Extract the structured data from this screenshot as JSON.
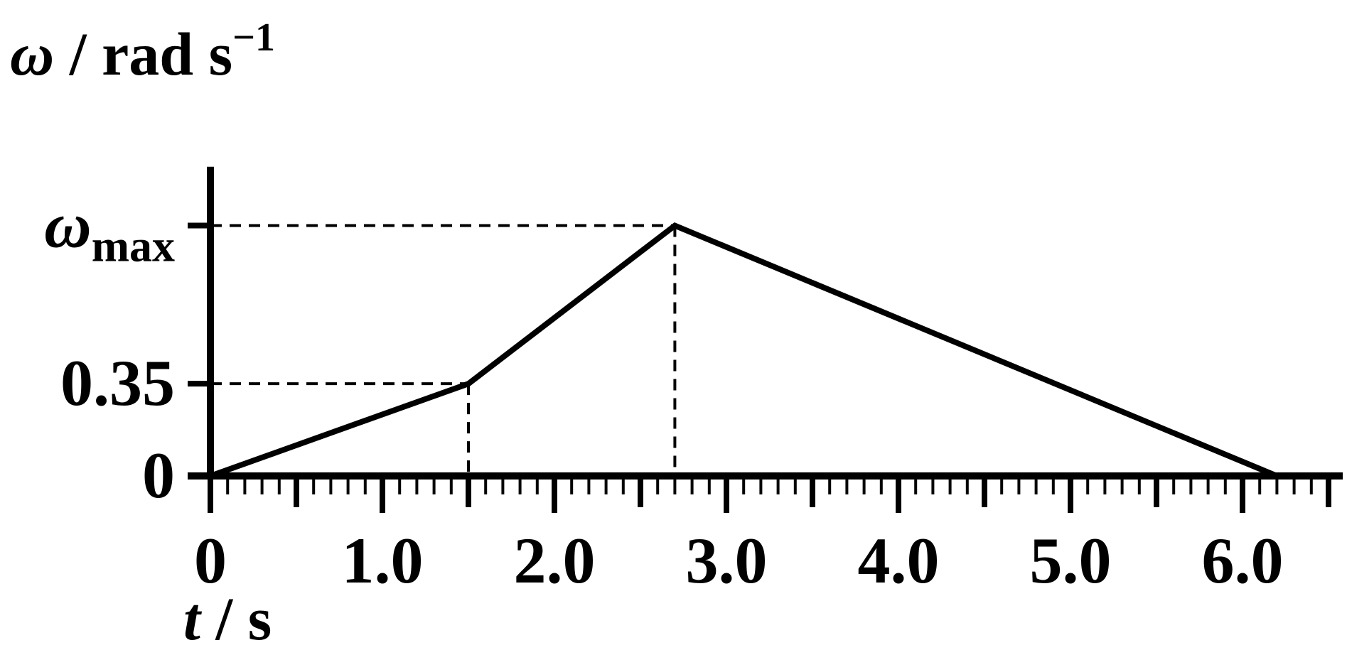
{
  "chart_data": {
    "type": "line",
    "ylabel": {
      "symbol": "ω",
      "unit": " / rad s",
      "exponent": "−1"
    },
    "xlabel": {
      "symbol": "t",
      "unit": " / s"
    },
    "y_ticks": [
      {
        "value": 0,
        "label": "0"
      },
      {
        "value": 0.35,
        "label": "0.35"
      },
      {
        "value": 0.95,
        "symbol": "ω",
        "subscript": "max"
      }
    ],
    "x_ticks": [
      {
        "value": 0,
        "label": "0"
      },
      {
        "value": 1,
        "label": "1.0"
      },
      {
        "value": 2,
        "label": "2.0"
      },
      {
        "value": 3,
        "label": "3.0"
      },
      {
        "value": 4,
        "label": "4.0"
      },
      {
        "value": 5,
        "label": "5.0"
      },
      {
        "value": 6,
        "label": "6.0"
      }
    ],
    "minor_tick_step": 0.1,
    "xlim": [
      0,
      6.5
    ],
    "ylim": [
      0,
      1.2
    ],
    "series": [
      {
        "x": [
          0,
          1.5,
          2.7,
          6.2
        ],
        "y": [
          0,
          0.35,
          0.95,
          0
        ]
      }
    ],
    "guides": [
      {
        "x": 1.5,
        "y": 0.35
      },
      {
        "x": 2.7,
        "y": 0.95
      }
    ],
    "grid": false,
    "colors": {
      "line": "#000000",
      "background": "#ffffff"
    }
  }
}
